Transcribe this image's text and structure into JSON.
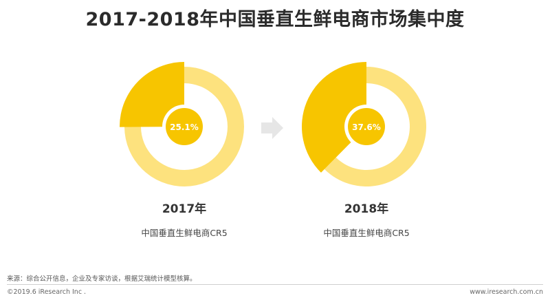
{
  "title": "2017-2018年中国垂直生鲜电商市场集中度",
  "colors": {
    "share": "#F7C500",
    "rest": "#FDE27E",
    "center": "#F7C500",
    "arrow": "#E6E6E6"
  },
  "chart_data": [
    {
      "type": "pie",
      "year_label": "2017年",
      "subtitle": "中国垂直生鲜电商CR5",
      "center_label": "25.1%",
      "values": [
        25.1,
        74.9
      ]
    },
    {
      "type": "pie",
      "year_label": "2018年",
      "subtitle": "中国垂直生鲜电商CR5",
      "center_label": "37.6%",
      "values": [
        37.6,
        62.4
      ]
    }
  ],
  "footer": {
    "source": "来源：综合公开信息，企业及专家访谈，根据艾瑞统计模型核算。",
    "copyright": "©2019.6 iResearch Inc .",
    "url": "www.iresearch.com.cn"
  }
}
